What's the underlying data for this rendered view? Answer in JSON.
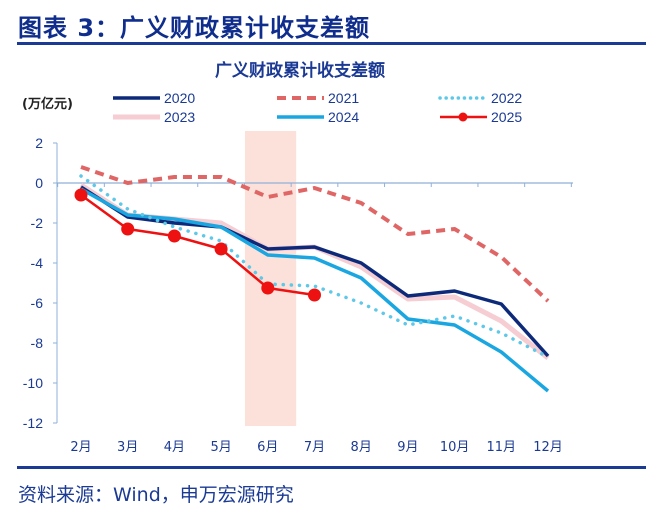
{
  "figure": {
    "title": "图表 3：广义财政累计收支差额",
    "source": "资料来源：Wind，申万宏源研究"
  },
  "chart_data": {
    "type": "line",
    "title": "广义财政累计收支差额",
    "ylabel": "(万亿元)",
    "xlabel": "",
    "categories": [
      "2月",
      "3月",
      "4月",
      "5月",
      "6月",
      "7月",
      "8月",
      "9月",
      "10月",
      "11月",
      "12月"
    ],
    "ylim": [
      -12,
      2
    ],
    "yticks": [
      2,
      0,
      -2,
      -4,
      -6,
      -8,
      -10,
      -12
    ],
    "grid": false,
    "legend_position": "top",
    "highlight_band": {
      "categories": [
        "6月",
        "7月"
      ],
      "color": "#fbe1da"
    },
    "series": [
      {
        "name": "2020",
        "color": "#0d2a7a",
        "style": "solid",
        "values": [
          -0.2,
          -1.7,
          -2.0,
          -2.2,
          -3.3,
          -3.2,
          -4.0,
          -5.65,
          -5.4,
          -6.05,
          -8.65
        ]
      },
      {
        "name": "2021",
        "color": "#e06666",
        "style": "dashed",
        "values": [
          0.8,
          0.0,
          0.3,
          0.3,
          -0.7,
          -0.25,
          -1.0,
          -2.55,
          -2.3,
          -3.7,
          -5.9
        ]
      },
      {
        "name": "2022",
        "color": "#5ec8e8",
        "style": "dotted",
        "values": [
          0.35,
          -1.3,
          -2.2,
          -2.9,
          -5.05,
          -5.15,
          -6.0,
          -7.1,
          -6.65,
          -7.5,
          -8.7
        ]
      },
      {
        "name": "2023",
        "color": "#f5cdd2",
        "style": "solid",
        "values": [
          -0.1,
          -1.6,
          -1.8,
          -2.0,
          -3.3,
          -3.2,
          -4.2,
          -5.8,
          -5.7,
          -6.9,
          -8.75
        ]
      },
      {
        "name": "2024",
        "color": "#1aa6e0",
        "style": "solid",
        "values": [
          -0.3,
          -1.6,
          -1.8,
          -2.2,
          -3.6,
          -3.75,
          -4.75,
          -6.8,
          -7.1,
          -8.45,
          -10.4
        ]
      },
      {
        "name": "2025",
        "color": "#ee1111",
        "style": "marker",
        "values": [
          -0.6,
          -2.3,
          -2.65,
          -3.3,
          -5.25,
          -5.6,
          null,
          null,
          null,
          null,
          null
        ]
      }
    ]
  }
}
